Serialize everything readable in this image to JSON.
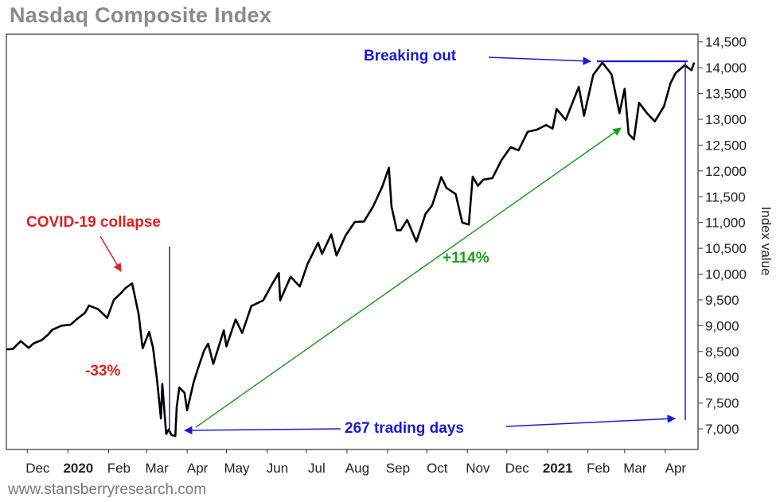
{
  "chart_data": {
    "type": "line",
    "title": "Nasdaq Composite Index",
    "ylabel": "Index value",
    "ylim": [
      6600,
      14650
    ],
    "y_ticks": [
      7000,
      7500,
      8000,
      8500,
      9000,
      9500,
      10000,
      10500,
      11000,
      11500,
      12000,
      12500,
      13000,
      13500,
      14000,
      14500
    ],
    "y_tick_labels": [
      "7,000",
      "7,500",
      "8,000",
      "8,500",
      "9,000",
      "9,500",
      "10,000",
      "10,500",
      "11,000",
      "11,500",
      "12,000",
      "12,500",
      "13,000",
      "13,500",
      "14,000",
      "14,500"
    ],
    "x_range": [
      "2019-11-15",
      "2021-04-26"
    ],
    "x_ticks": [
      {
        "label": "Dec",
        "date": "2019-12-01",
        "bold": false
      },
      {
        "label": "2020",
        "date": "2020-01-01",
        "bold": true
      },
      {
        "label": "Feb",
        "date": "2020-02-01",
        "bold": false
      },
      {
        "label": "Mar",
        "date": "2020-03-01",
        "bold": false
      },
      {
        "label": "Apr",
        "date": "2020-04-01",
        "bold": false
      },
      {
        "label": "May",
        "date": "2020-05-01",
        "bold": false
      },
      {
        "label": "Jun",
        "date": "2020-06-01",
        "bold": false
      },
      {
        "label": "Jul",
        "date": "2020-07-01",
        "bold": false
      },
      {
        "label": "Aug",
        "date": "2020-08-01",
        "bold": false
      },
      {
        "label": "Sep",
        "date": "2020-09-01",
        "bold": false
      },
      {
        "label": "Oct",
        "date": "2020-10-01",
        "bold": false
      },
      {
        "label": "Nov",
        "date": "2020-11-01",
        "bold": false
      },
      {
        "label": "Dec",
        "date": "2020-12-01",
        "bold": false
      },
      {
        "label": "2021",
        "date": "2021-01-01",
        "bold": true
      },
      {
        "label": "Feb",
        "date": "2021-02-01",
        "bold": false
      },
      {
        "label": "Mar",
        "date": "2021-03-01",
        "bold": false
      },
      {
        "label": "Apr",
        "date": "2021-04-01",
        "bold": false
      }
    ],
    "grid": false,
    "series": [
      {
        "color": "#000000",
        "points": [
          [
            "2019-11-15",
            8540
          ],
          [
            "2019-11-20",
            8550
          ],
          [
            "2019-11-26",
            8700
          ],
          [
            "2019-12-02",
            8570
          ],
          [
            "2019-12-06",
            8660
          ],
          [
            "2019-12-12",
            8720
          ],
          [
            "2019-12-17",
            8830
          ],
          [
            "2019-12-20",
            8920
          ],
          [
            "2019-12-27",
            9000
          ],
          [
            "2020-01-03",
            9020
          ],
          [
            "2020-01-08",
            9130
          ],
          [
            "2020-01-14",
            9250
          ],
          [
            "2020-01-17",
            9390
          ],
          [
            "2020-01-24",
            9320
          ],
          [
            "2020-01-31",
            9150
          ],
          [
            "2020-02-05",
            9500
          ],
          [
            "2020-02-10",
            9620
          ],
          [
            "2020-02-14",
            9730
          ],
          [
            "2020-02-19",
            9820
          ],
          [
            "2020-02-21",
            9580
          ],
          [
            "2020-02-24",
            9220
          ],
          [
            "2020-02-27",
            8560
          ],
          [
            "2020-03-03",
            8880
          ],
          [
            "2020-03-06",
            8570
          ],
          [
            "2020-03-09",
            7950
          ],
          [
            "2020-03-12",
            7200
          ],
          [
            "2020-03-13",
            7870
          ],
          [
            "2020-03-16",
            6900
          ],
          [
            "2020-03-18",
            6990
          ],
          [
            "2020-03-20",
            6880
          ],
          [
            "2020-03-23",
            6860
          ],
          [
            "2020-03-24",
            7420
          ],
          [
            "2020-03-26",
            7800
          ],
          [
            "2020-03-30",
            7700
          ],
          [
            "2020-04-01",
            7360
          ],
          [
            "2020-04-06",
            7910
          ],
          [
            "2020-04-09",
            8150
          ],
          [
            "2020-04-14",
            8520
          ],
          [
            "2020-04-17",
            8650
          ],
          [
            "2020-04-21",
            8260
          ],
          [
            "2020-04-29",
            8910
          ],
          [
            "2020-05-01",
            8600
          ],
          [
            "2020-05-08",
            9120
          ],
          [
            "2020-05-13",
            8860
          ],
          [
            "2020-05-20",
            9380
          ],
          [
            "2020-05-29",
            9490
          ],
          [
            "2020-06-05",
            9810
          ],
          [
            "2020-06-10",
            10020
          ],
          [
            "2020-06-11",
            9490
          ],
          [
            "2020-06-19",
            9950
          ],
          [
            "2020-06-26",
            9760
          ],
          [
            "2020-07-02",
            10200
          ],
          [
            "2020-07-10",
            10610
          ],
          [
            "2020-07-13",
            10390
          ],
          [
            "2020-07-20",
            10770
          ],
          [
            "2020-07-24",
            10360
          ],
          [
            "2020-07-31",
            10750
          ],
          [
            "2020-08-07",
            11010
          ],
          [
            "2020-08-14",
            11020
          ],
          [
            "2020-08-21",
            11310
          ],
          [
            "2020-08-28",
            11700
          ],
          [
            "2020-09-02",
            12060
          ],
          [
            "2020-09-04",
            11310
          ],
          [
            "2020-09-08",
            10850
          ],
          [
            "2020-09-11",
            10850
          ],
          [
            "2020-09-16",
            11050
          ],
          [
            "2020-09-23",
            10630
          ],
          [
            "2020-09-30",
            11170
          ],
          [
            "2020-10-05",
            11330
          ],
          [
            "2020-10-12",
            11880
          ],
          [
            "2020-10-16",
            11670
          ],
          [
            "2020-10-23",
            11550
          ],
          [
            "2020-10-28",
            11000
          ],
          [
            "2020-11-02",
            10960
          ],
          [
            "2020-11-05",
            11890
          ],
          [
            "2020-11-09",
            11710
          ],
          [
            "2020-11-13",
            11830
          ],
          [
            "2020-11-20",
            11860
          ],
          [
            "2020-11-27",
            12210
          ],
          [
            "2020-12-04",
            12460
          ],
          [
            "2020-12-10",
            12400
          ],
          [
            "2020-12-17",
            12760
          ],
          [
            "2020-12-24",
            12800
          ],
          [
            "2020-12-31",
            12890
          ],
          [
            "2021-01-05",
            12820
          ],
          [
            "2021-01-08",
            13200
          ],
          [
            "2021-01-15",
            12990
          ],
          [
            "2021-01-25",
            13630
          ],
          [
            "2021-01-29",
            13070
          ],
          [
            "2021-02-05",
            13860
          ],
          [
            "2021-02-12",
            14100
          ],
          [
            "2021-02-19",
            13870
          ],
          [
            "2021-02-25",
            13120
          ],
          [
            "2021-03-01",
            13590
          ],
          [
            "2021-03-04",
            12720
          ],
          [
            "2021-03-08",
            12610
          ],
          [
            "2021-03-12",
            13320
          ],
          [
            "2021-03-18",
            13120
          ],
          [
            "2021-03-24",
            12960
          ],
          [
            "2021-03-31",
            13250
          ],
          [
            "2021-04-05",
            13700
          ],
          [
            "2021-04-09",
            13900
          ],
          [
            "2021-04-16",
            14050
          ],
          [
            "2021-04-21",
            13950
          ],
          [
            "2021-04-23",
            14100
          ]
        ]
      }
    ],
    "annotations": [
      {
        "text": "COVID-19 collapse",
        "color": "#e02020"
      },
      {
        "text": "-33%",
        "color": "#e02020"
      },
      {
        "text": "+114%",
        "color": "#18a018"
      },
      {
        "text": "Breaking out",
        "color": "#1a1ad8"
      },
      {
        "text": "267 trading days",
        "color": "#1a1ad8"
      }
    ]
  },
  "footer": {
    "source": "www.stansberryresearch.com"
  },
  "colors": {
    "axis": "#333333",
    "title": "#8a8a8a",
    "line": "#000000",
    "red": "#e02020",
    "green": "#18a018",
    "blue": "#1a1ad8"
  }
}
